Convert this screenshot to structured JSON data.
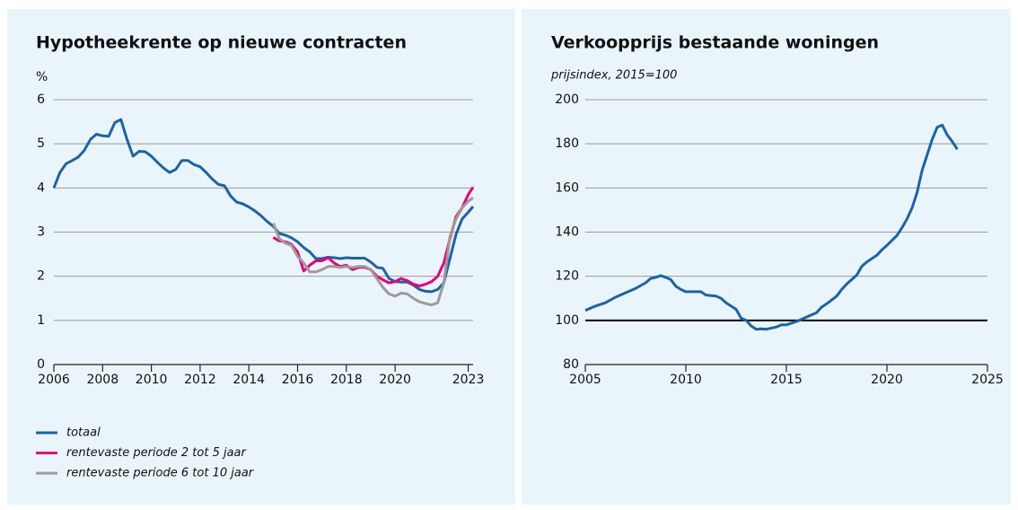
{
  "chart_data": [
    {
      "type": "line",
      "title": "Hypotheekrente op nieuwe contracten",
      "y_label": "%",
      "x": [
        2006,
        2006.25,
        2006.5,
        2006.75,
        2007,
        2007.25,
        2007.5,
        2007.75,
        2008,
        2008.25,
        2008.5,
        2008.75,
        2009,
        2009.25,
        2009.5,
        2009.75,
        2010,
        2010.25,
        2010.5,
        2010.75,
        2011,
        2011.25,
        2011.5,
        2011.75,
        2012,
        2012.25,
        2012.5,
        2012.75,
        2013,
        2013.25,
        2013.5,
        2013.75,
        2014,
        2014.25,
        2014.5,
        2014.75,
        2015,
        2015.25,
        2015.5,
        2015.75,
        2016,
        2016.25,
        2016.5,
        2016.75,
        2017,
        2017.25,
        2017.5,
        2017.75,
        2018,
        2018.25,
        2018.5,
        2018.75,
        2019,
        2019.25,
        2019.5,
        2019.75,
        2020,
        2020.25,
        2020.5,
        2020.75,
        2021,
        2021.25,
        2021.5,
        2021.75,
        2022,
        2022.25,
        2022.5,
        2022.75,
        2023,
        2023.2
      ],
      "series": [
        {
          "name": "totaal",
          "color": "#1a64a8",
          "values": [
            4.0,
            4.35,
            4.55,
            4.62,
            4.7,
            4.85,
            5.1,
            5.22,
            5.18,
            5.17,
            5.48,
            5.55,
            5.1,
            4.72,
            4.83,
            4.82,
            4.72,
            4.58,
            4.45,
            4.35,
            4.42,
            4.62,
            4.62,
            4.53,
            4.48,
            4.35,
            4.2,
            4.08,
            4.05,
            3.82,
            3.68,
            3.64,
            3.57,
            3.48,
            3.37,
            3.24,
            3.13,
            2.97,
            2.93,
            2.87,
            2.78,
            2.65,
            2.55,
            2.4,
            2.4,
            2.43,
            2.42,
            2.4,
            2.42,
            2.41,
            2.41,
            2.41,
            2.32,
            2.2,
            2.18,
            1.95,
            1.88,
            1.87,
            1.87,
            1.8,
            1.7,
            1.66,
            1.65,
            1.7,
            1.85,
            2.4,
            2.95,
            3.3,
            3.45,
            3.58
          ]
        },
        {
          "name": "rentevaste periode 2 tot 5 jaar",
          "color": "#e3007e",
          "values": [
            null,
            null,
            null,
            null,
            null,
            null,
            null,
            null,
            null,
            null,
            null,
            null,
            null,
            null,
            null,
            null,
            null,
            null,
            null,
            null,
            null,
            null,
            null,
            null,
            null,
            null,
            null,
            null,
            null,
            null,
            null,
            null,
            null,
            null,
            null,
            null,
            2.88,
            2.8,
            2.78,
            2.72,
            2.55,
            2.12,
            2.25,
            2.35,
            2.35,
            2.42,
            2.3,
            2.22,
            2.25,
            2.15,
            2.2,
            2.2,
            2.15,
            2.0,
            1.92,
            1.85,
            1.88,
            1.95,
            1.9,
            1.82,
            1.78,
            1.82,
            1.88,
            2.0,
            2.3,
            2.85,
            3.35,
            3.55,
            3.85,
            4.02
          ]
        },
        {
          "name": "rentevaste periode 6 tot 10 jaar",
          "color": "#a39995",
          "values": [
            null,
            null,
            null,
            null,
            null,
            null,
            null,
            null,
            null,
            null,
            null,
            null,
            null,
            null,
            null,
            null,
            null,
            null,
            null,
            null,
            null,
            null,
            null,
            null,
            null,
            null,
            null,
            null,
            null,
            null,
            null,
            null,
            null,
            null,
            null,
            null,
            3.2,
            2.85,
            2.75,
            2.7,
            2.45,
            2.3,
            2.1,
            2.1,
            2.15,
            2.22,
            2.22,
            2.2,
            2.22,
            2.2,
            2.22,
            2.22,
            2.15,
            1.95,
            1.75,
            1.6,
            1.55,
            1.62,
            1.6,
            1.5,
            1.42,
            1.38,
            1.35,
            1.4,
            1.85,
            2.9,
            3.3,
            3.55,
            3.7,
            3.78
          ]
        }
      ],
      "xlim": [
        2006,
        2023.2
      ],
      "xticks": [
        2006,
        2008,
        2010,
        2012,
        2014,
        2016,
        2018,
        2020,
        2023
      ],
      "ylim": [
        0,
        6
      ],
      "yticks": [
        0,
        1,
        2,
        3,
        4,
        5,
        6
      ],
      "grid": true,
      "legend": "bottom-left"
    },
    {
      "type": "line",
      "title": "Verkoopprijs bestaande woningen",
      "subtitle": "prijsindex, 2015=100",
      "x": [
        2005,
        2005.5,
        2006,
        2006.5,
        2007,
        2007.5,
        2008,
        2008.25,
        2008.5,
        2008.75,
        2009,
        2009.25,
        2009.5,
        2009.75,
        2010,
        2010.5,
        2010.75,
        2011,
        2011.5,
        2011.75,
        2012,
        2012.5,
        2012.75,
        2013,
        2013.25,
        2013.5,
        2013.75,
        2014,
        2014.5,
        2014.75,
        2015,
        2015.5,
        2015.75,
        2016,
        2016.5,
        2016.75,
        2017,
        2017.5,
        2017.75,
        2018,
        2018.5,
        2018.75,
        2019,
        2019.5,
        2019.75,
        2020,
        2020.5,
        2020.75,
        2021,
        2021.25,
        2021.5,
        2021.75,
        2022,
        2022.25,
        2022.5,
        2022.75,
        2023,
        2023.25,
        2023.5
      ],
      "series": [
        {
          "name": null,
          "color": "#1a64a8",
          "values": [
            104.5,
            106.5,
            108,
            110.5,
            112.5,
            114.5,
            117,
            119,
            119.5,
            120.3,
            119.5,
            118.5,
            115.5,
            114,
            113,
            113,
            113,
            111.5,
            111,
            110,
            108,
            105,
            101,
            100,
            97.5,
            96,
            96.2,
            96,
            97,
            98,
            98,
            99.5,
            100.5,
            101.5,
            103.5,
            106,
            107.5,
            111,
            114,
            116.5,
            120.5,
            124.5,
            126.5,
            129.5,
            132,
            134,
            138.5,
            142,
            146,
            151,
            158,
            168,
            175,
            182,
            187.5,
            188.5,
            184,
            181,
            177.5
          ]
        }
      ],
      "xlim": [
        2005,
        2025
      ],
      "xticks": [
        2005,
        2010,
        2015,
        2020,
        2025
      ],
      "ylim": [
        80,
        200
      ],
      "yticks": [
        80,
        100,
        120,
        140,
        160,
        180,
        200
      ],
      "grid": true,
      "baseline": 100
    }
  ]
}
